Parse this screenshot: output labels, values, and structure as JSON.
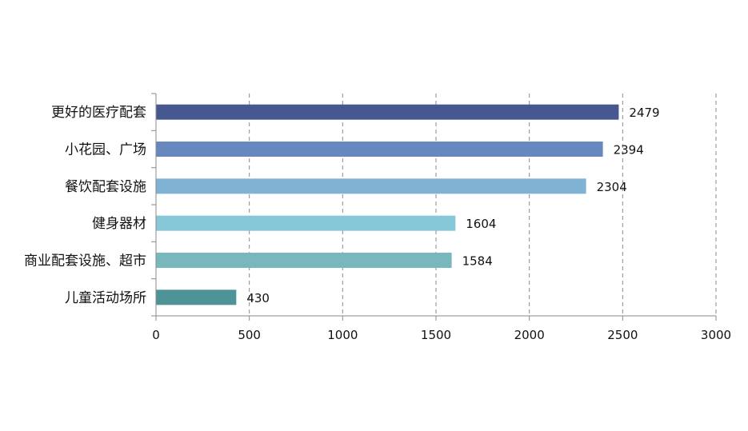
{
  "chart_data": {
    "type": "bar",
    "orientation": "horizontal",
    "categories": [
      "更好的医疗配套",
      "小花园、广场",
      "餐饮配套设施",
      "健身器材",
      "商业配套设施、超市",
      "儿童活动场所"
    ],
    "values": [
      2479,
      2394,
      2304,
      1604,
      1584,
      430
    ],
    "colors": [
      "#46588f",
      "#6688bf",
      "#7fb2d3",
      "#86c8d8",
      "#78b8bd",
      "#4e9398"
    ],
    "xlim": [
      0,
      3000
    ],
    "x_ticks": [
      "0",
      "500",
      "1000",
      "1500",
      "2000",
      "2500",
      "3000"
    ],
    "grid": "vertical-dashed",
    "data_labels": true,
    "title": "",
    "xlabel": "",
    "ylabel": ""
  }
}
